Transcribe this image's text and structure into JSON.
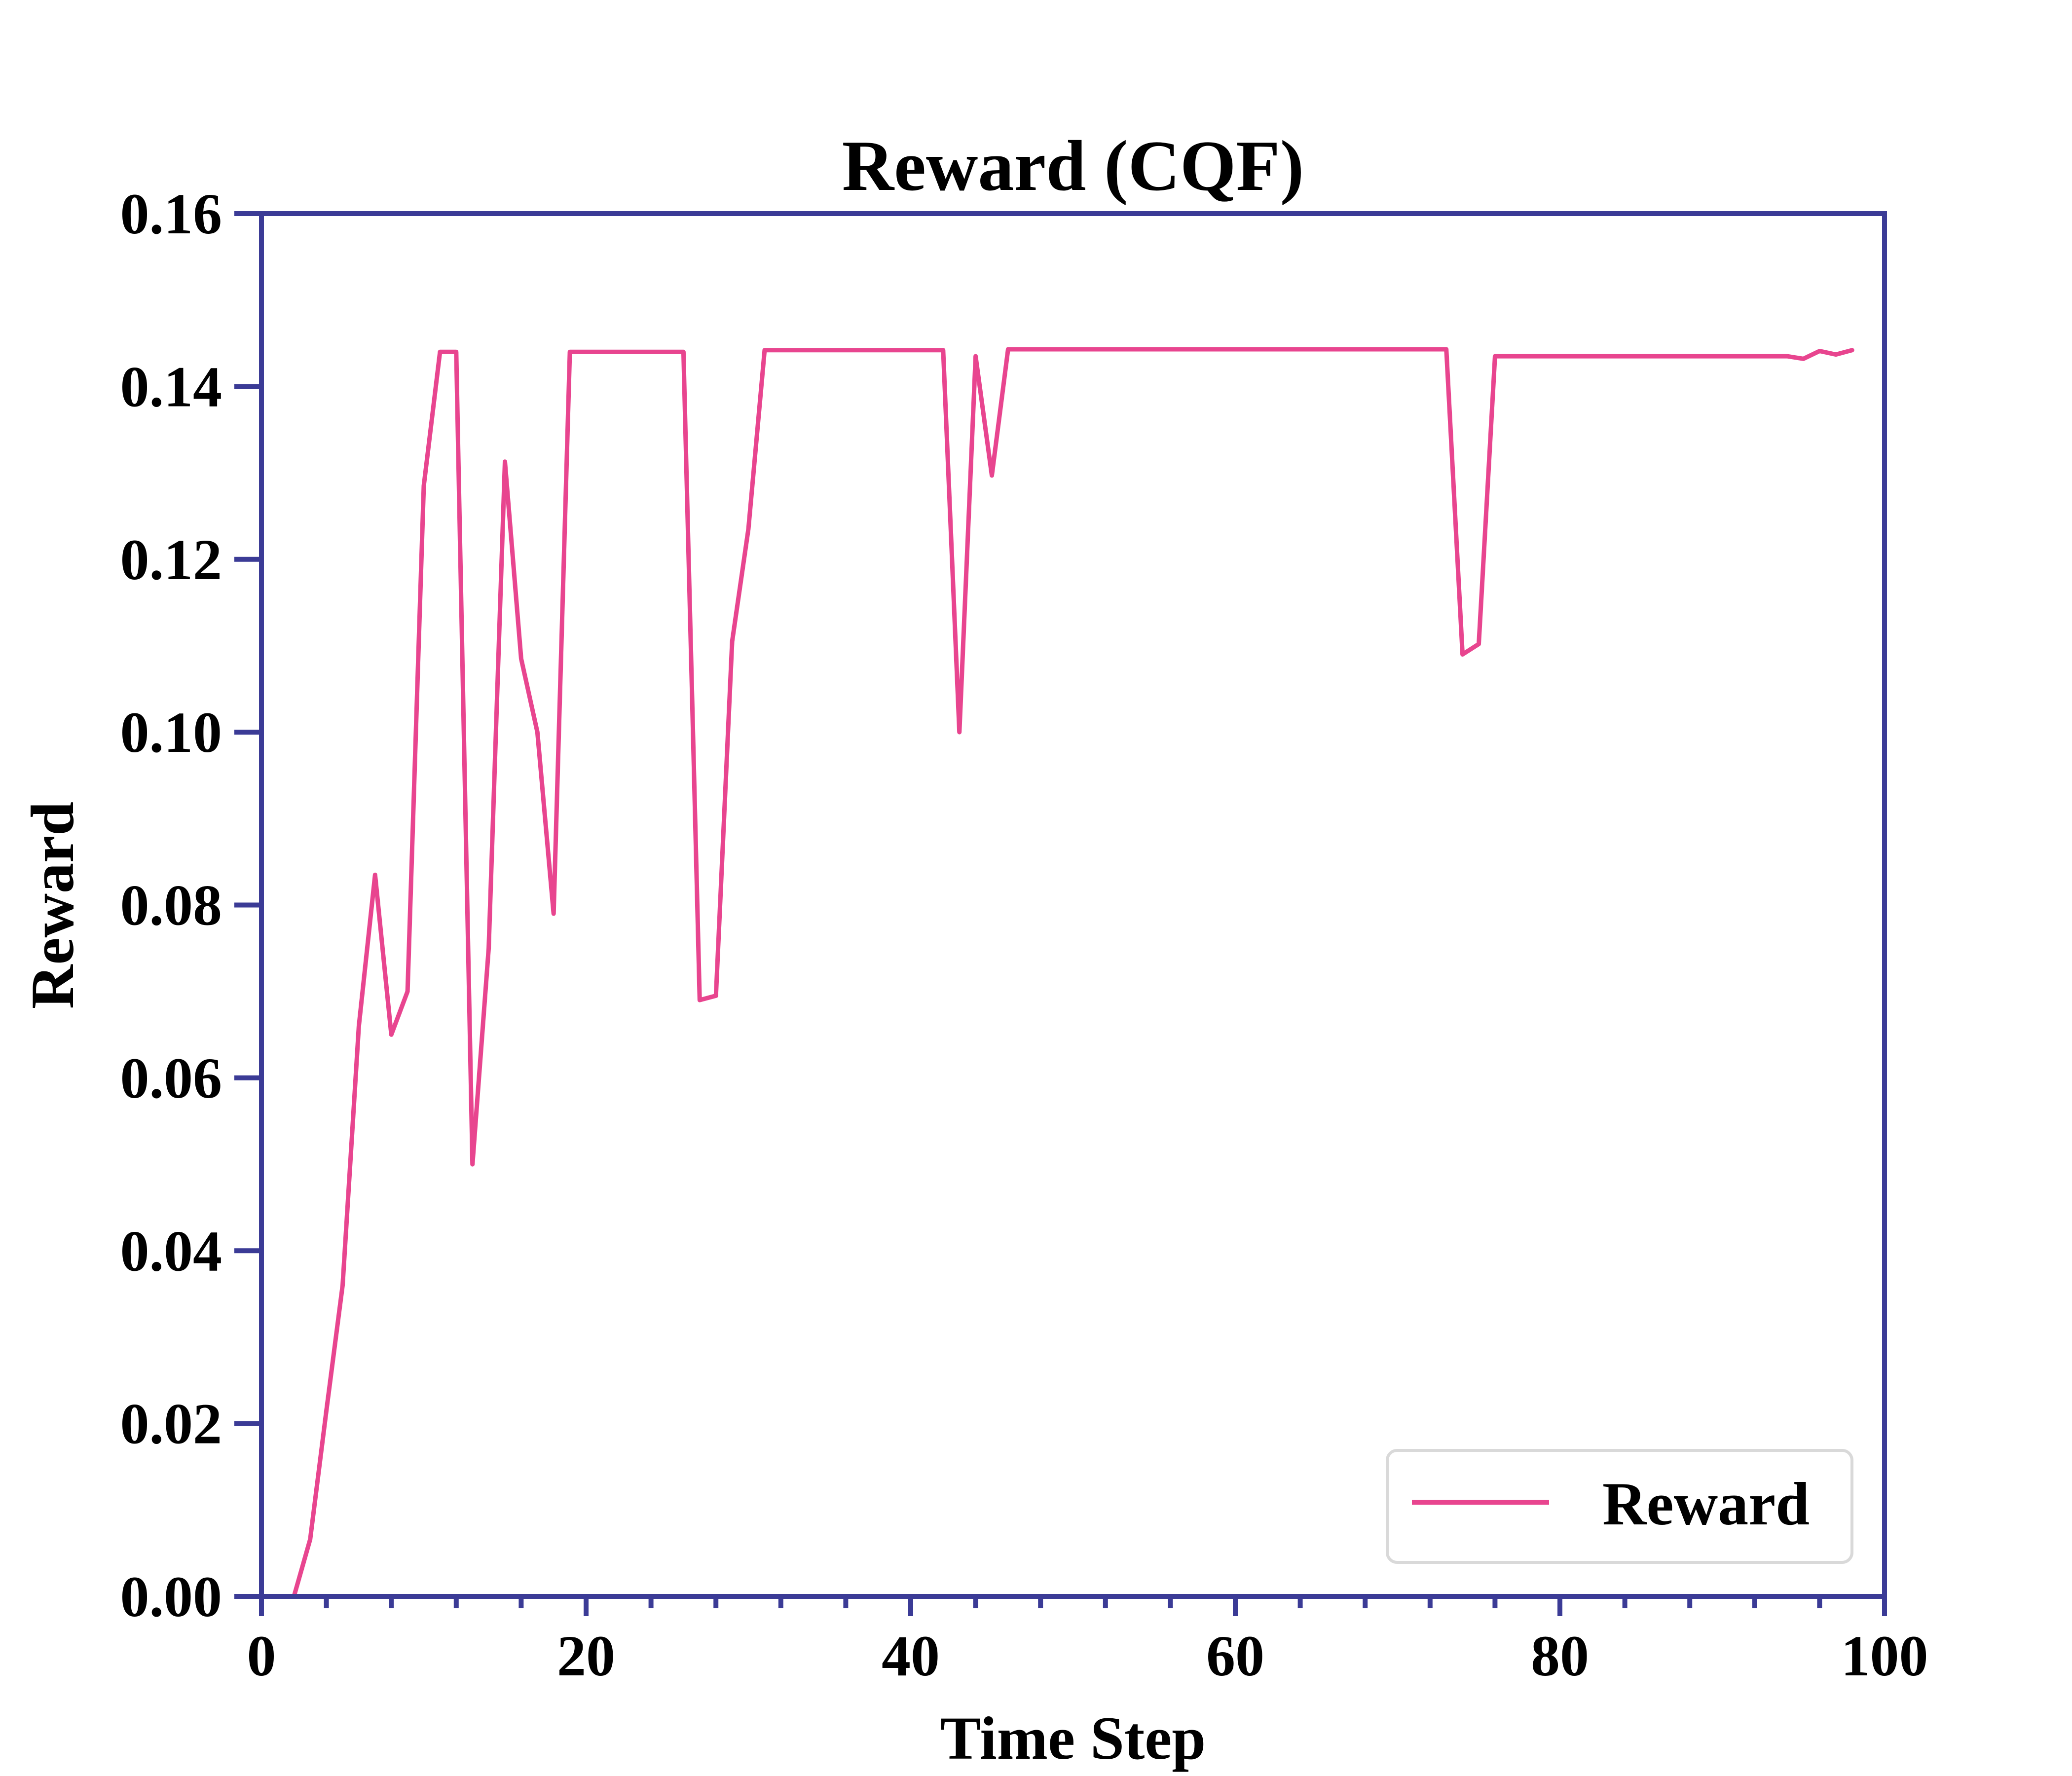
{
  "colors": {
    "line": "#e8458f",
    "axis": "#3b3b96",
    "background": "#ffffff",
    "legend_border": "#d9d9d9"
  },
  "chart_data": {
    "type": "line",
    "title": "Reward (CQF)",
    "xlabel": "Time Step",
    "ylabel": "Reward",
    "xlim": [
      0,
      100
    ],
    "ylim": [
      0,
      0.16
    ],
    "x_ticks": [
      0,
      20,
      40,
      60,
      80,
      100
    ],
    "x_tick_labels": [
      "0",
      "20",
      "40",
      "60",
      "80",
      "100"
    ],
    "y_ticks": [
      0,
      0.02,
      0.04,
      0.06,
      0.08,
      0.1,
      0.12,
      0.14,
      0.16
    ],
    "y_tick_labels": [
      "0.00",
      "0.02",
      "0.04",
      "0.06",
      "0.08",
      "0.10",
      "0.12",
      "0.14",
      "0.16"
    ],
    "x_minor_step": 4,
    "grid": false,
    "legend_position": "lower-right",
    "series": [
      {
        "name": "Reward",
        "x": [
          2,
          3,
          4,
          5,
          6,
          7,
          8,
          9,
          10,
          11,
          12,
          13,
          14,
          15,
          16,
          17,
          18,
          19,
          20,
          21,
          22,
          23,
          24,
          25,
          26,
          27,
          28,
          29,
          30,
          31,
          32,
          33,
          34,
          35,
          36,
          37,
          38,
          39,
          40,
          41,
          42,
          43,
          44,
          45,
          46,
          47,
          48,
          49,
          50,
          51,
          52,
          53,
          54,
          55,
          56,
          57,
          58,
          59,
          60,
          61,
          62,
          63,
          64,
          65,
          66,
          67,
          68,
          69,
          70,
          71,
          72,
          73,
          74,
          75,
          76,
          77,
          78,
          79,
          80,
          81,
          82,
          83,
          84,
          85,
          86,
          87,
          88,
          89,
          90,
          91,
          92,
          93,
          94,
          95,
          96,
          97,
          98
        ],
        "y": [
          0.0,
          0.0066,
          0.0215,
          0.036,
          0.066,
          0.0835,
          0.065,
          0.07,
          0.1285,
          0.144,
          0.144,
          0.05,
          0.075,
          0.1313,
          0.1085,
          0.1,
          0.079,
          0.144,
          0.144,
          0.144,
          0.144,
          0.144,
          0.144,
          0.144,
          0.144,
          0.069,
          0.0695,
          0.1105,
          0.1235,
          0.1442,
          0.1442,
          0.1442,
          0.1442,
          0.1442,
          0.1442,
          0.1442,
          0.1442,
          0.1442,
          0.1442,
          0.1442,
          0.1442,
          0.1,
          0.1435,
          0.1297,
          0.1443,
          0.1443,
          0.1443,
          0.1443,
          0.1443,
          0.1443,
          0.1443,
          0.1443,
          0.1443,
          0.1443,
          0.1443,
          0.1443,
          0.1443,
          0.1443,
          0.1443,
          0.1443,
          0.1443,
          0.1443,
          0.1443,
          0.1443,
          0.1443,
          0.1443,
          0.1443,
          0.1443,
          0.1443,
          0.1443,
          0.1443,
          0.1443,
          0.109,
          0.1102,
          0.1435,
          0.1435,
          0.1435,
          0.1435,
          0.1435,
          0.1435,
          0.1435,
          0.1435,
          0.1435,
          0.1435,
          0.1435,
          0.1435,
          0.1435,
          0.1435,
          0.1435,
          0.1435,
          0.1435,
          0.1435,
          0.1435,
          0.1432,
          0.1441,
          0.1437,
          0.1442
        ]
      }
    ]
  }
}
